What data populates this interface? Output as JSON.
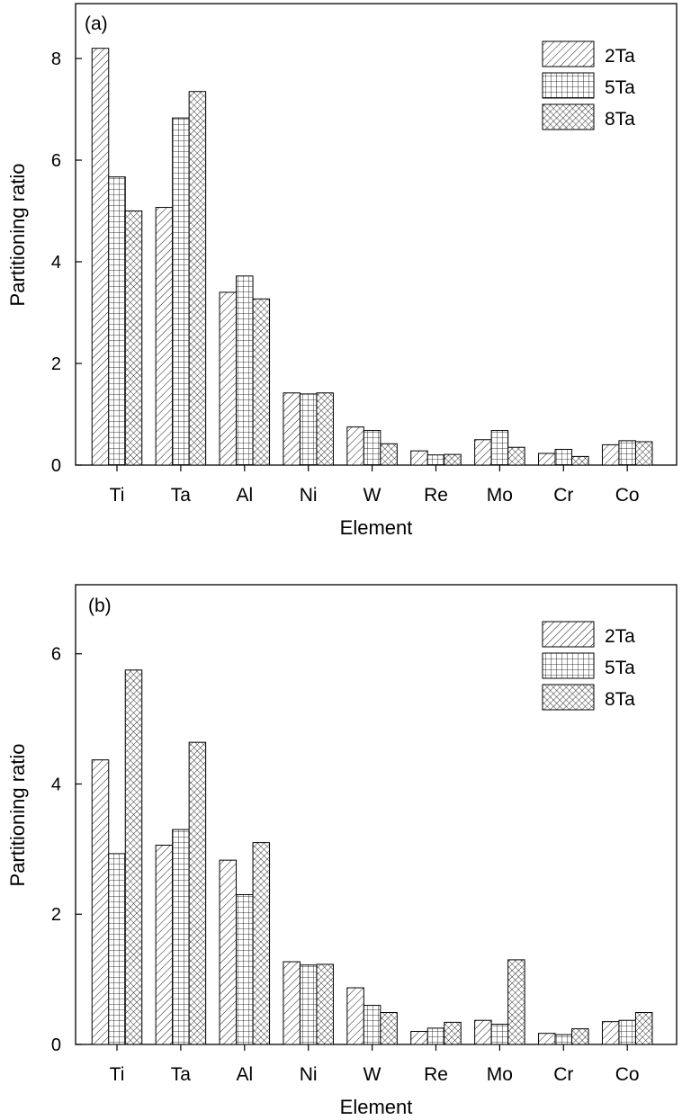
{
  "chart_data": [
    {
      "type": "bar",
      "panel_label": "(a)",
      "categories": [
        "Ti",
        "Ta",
        "Al",
        "Ni",
        "W",
        "Re",
        "Mo",
        "Cr",
        "Co"
      ],
      "series": [
        {
          "name": "2Ta",
          "pattern": "diagonal-hatch",
          "values": [
            8.2,
            5.07,
            3.4,
            1.42,
            0.75,
            0.28,
            0.5,
            0.23,
            0.4
          ]
        },
        {
          "name": "5Ta",
          "pattern": "grid-hatch",
          "values": [
            5.67,
            6.83,
            3.72,
            1.4,
            0.68,
            0.2,
            0.68,
            0.31,
            0.48
          ]
        },
        {
          "name": "8Ta",
          "pattern": "cross-hatch",
          "values": [
            5.0,
            7.35,
            3.27,
            1.42,
            0.42,
            0.21,
            0.35,
            0.17,
            0.46
          ]
        }
      ],
      "xlabel": "Element",
      "ylabel": "Partitioning ratio",
      "ylim": [
        0,
        9.08
      ],
      "yticks": [
        "0",
        "2",
        "4",
        "6",
        "8"
      ],
      "legend_position": "top-right",
      "grid": false
    },
    {
      "type": "bar",
      "panel_label": "(b)",
      "categories": [
        "Ti",
        "Ta",
        "Al",
        "Ni",
        "W",
        "Re",
        "Mo",
        "Cr",
        "Co"
      ],
      "series": [
        {
          "name": "2Ta",
          "pattern": "diagonal-hatch",
          "values": [
            4.37,
            3.06,
            2.83,
            1.27,
            0.87,
            0.2,
            0.37,
            0.17,
            0.35
          ]
        },
        {
          "name": "5Ta",
          "pattern": "grid-hatch",
          "values": [
            2.93,
            3.3,
            2.3,
            1.22,
            0.6,
            0.25,
            0.31,
            0.15,
            0.37
          ]
        },
        {
          "name": "8Ta",
          "pattern": "cross-hatch",
          "values": [
            5.75,
            4.64,
            3.1,
            1.23,
            0.49,
            0.34,
            1.3,
            0.24,
            0.49
          ]
        }
      ],
      "xlabel": "Element",
      "ylabel": "Partitioning ratio",
      "ylim": [
        0,
        7.06
      ],
      "yticks": [
        "0",
        "2",
        "4",
        "6"
      ],
      "legend_position": "top-right",
      "grid": false
    }
  ]
}
